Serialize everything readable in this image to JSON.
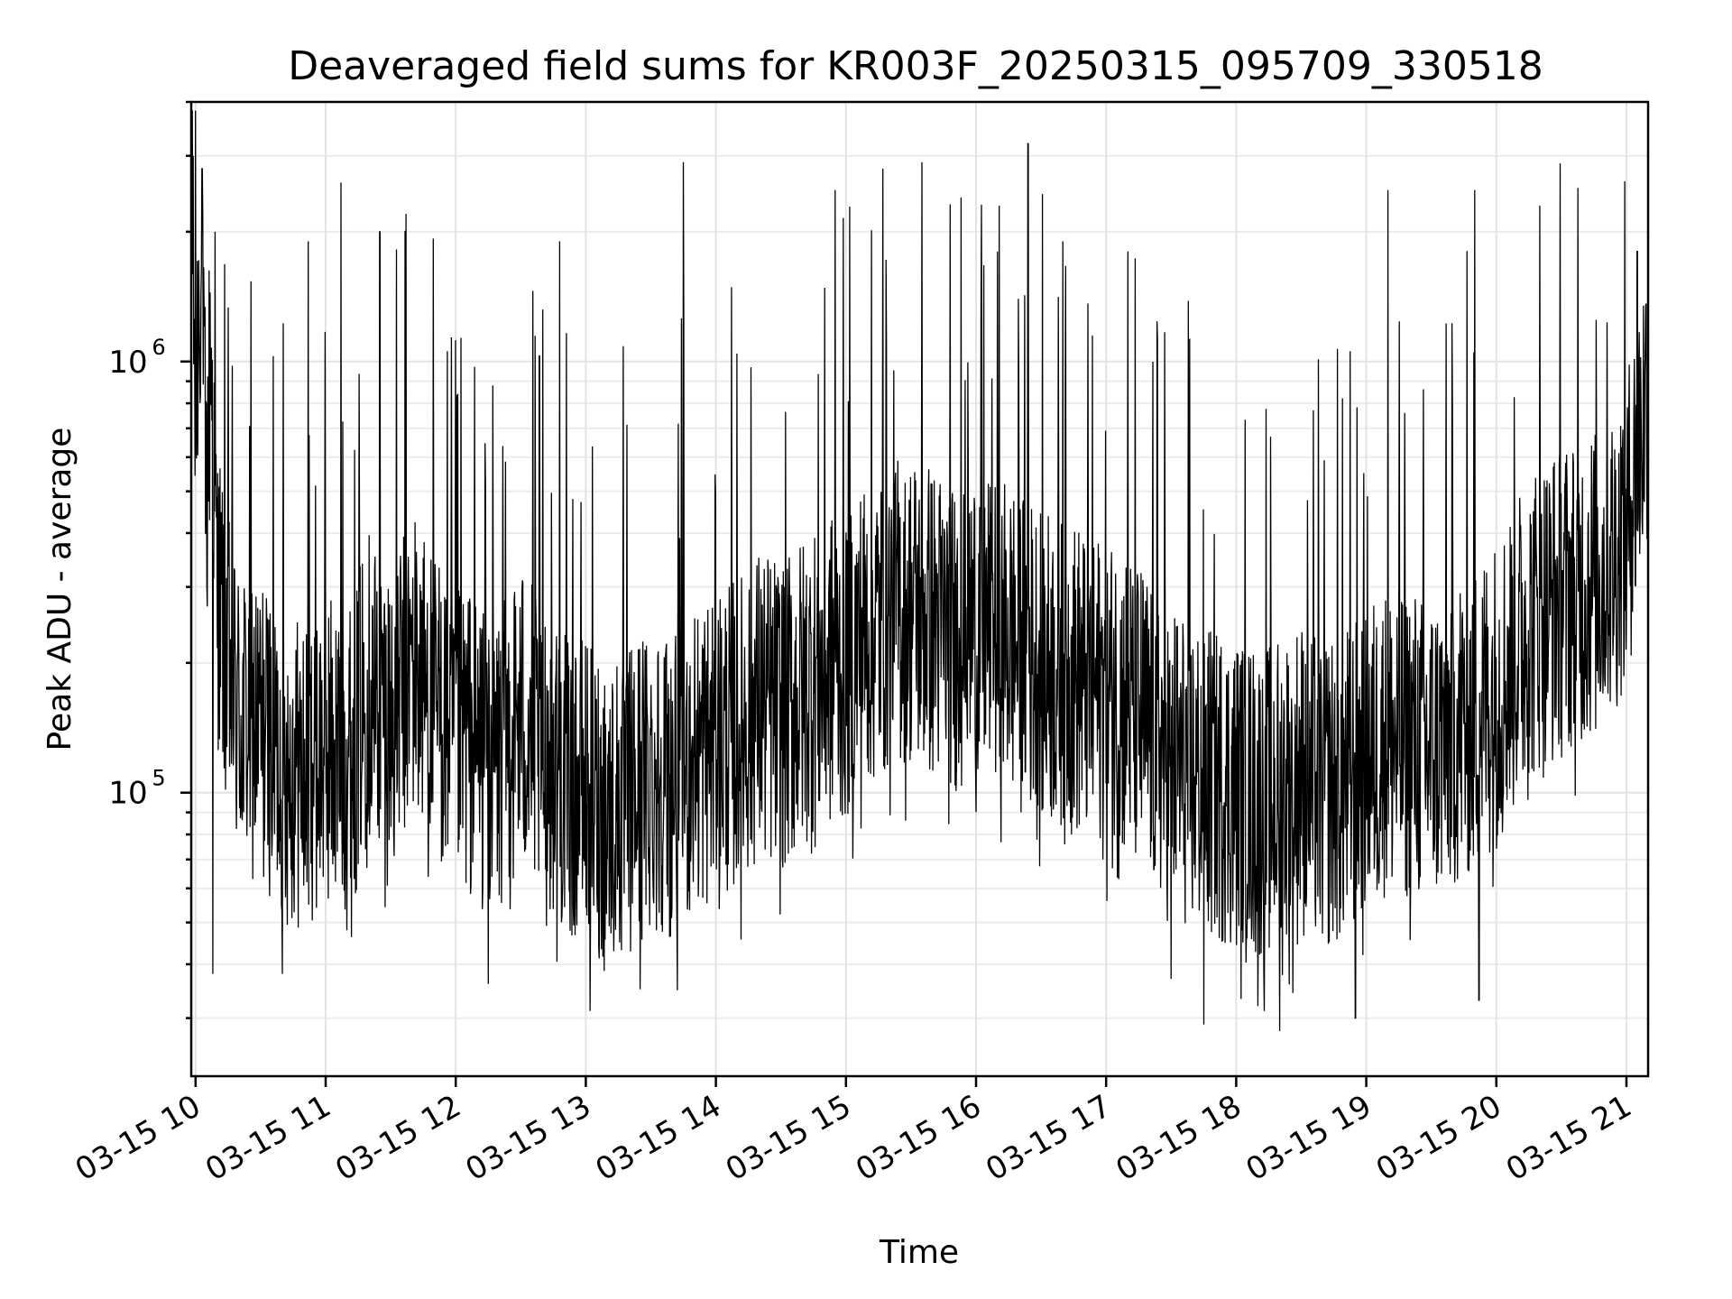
{
  "chart_data": {
    "type": "line",
    "title": "Deaveraged field sums for KR003F_20250315_095709_330518",
    "xlabel": "Time",
    "ylabel": "Peak ADU - average",
    "xscale": "time",
    "yscale": "log",
    "xlim": [
      "2025-03-15 09:58",
      "2025-03-15 21:10"
    ],
    "ylim": [
      22000,
      4000000
    ],
    "grid": true,
    "x_ticks": [
      "03-15 10",
      "03-15 11",
      "03-15 12",
      "03-15 13",
      "03-15 14",
      "03-15 15",
      "03-15 16",
      "03-15 17",
      "03-15 18",
      "03-15 19",
      "03-15 20",
      "03-15 21"
    ],
    "y_ticks": [
      {
        "base": "10",
        "exp": "5",
        "value": 100000
      },
      {
        "base": "10",
        "exp": "6",
        "value": 1000000
      }
    ],
    "color": "#000000",
    "series": [
      {
        "x": [
          "2025-03-15 09:58",
          "2025-03-15 10:00",
          "2025-03-15 10:02",
          "2025-03-15 10:05",
          "2025-03-15 10:07",
          "2025-03-15 10:10",
          "2025-03-15 10:15",
          "2025-03-15 10:20",
          "2025-03-15 10:30",
          "2025-03-15 10:40",
          "2025-03-15 10:50",
          "2025-03-15 11:00",
          "2025-03-15 11:10",
          "2025-03-15 11:20",
          "2025-03-15 11:30",
          "2025-03-15 11:40",
          "2025-03-15 11:50",
          "2025-03-15 12:00",
          "2025-03-15 12:10",
          "2025-03-15 12:20",
          "2025-03-15 12:30",
          "2025-03-15 12:40",
          "2025-03-15 12:50",
          "2025-03-15 13:00",
          "2025-03-15 13:10",
          "2025-03-15 13:20",
          "2025-03-15 13:30",
          "2025-03-15 13:40",
          "2025-03-15 13:50",
          "2025-03-15 14:00",
          "2025-03-15 14:10",
          "2025-03-15 14:20",
          "2025-03-15 14:30",
          "2025-03-15 14:40",
          "2025-03-15 14:50",
          "2025-03-15 15:00",
          "2025-03-15 15:10",
          "2025-03-15 15:20",
          "2025-03-15 15:30",
          "2025-03-15 15:40",
          "2025-03-15 15:50",
          "2025-03-15 16:00",
          "2025-03-15 16:10",
          "2025-03-15 16:20",
          "2025-03-15 16:30",
          "2025-03-15 16:40",
          "2025-03-15 16:50",
          "2025-03-15 17:00",
          "2025-03-15 17:10",
          "2025-03-15 17:20",
          "2025-03-15 17:30",
          "2025-03-15 17:40",
          "2025-03-15 17:50",
          "2025-03-15 18:00",
          "2025-03-15 18:10",
          "2025-03-15 18:20",
          "2025-03-15 18:30",
          "2025-03-15 18:40",
          "2025-03-15 18:50",
          "2025-03-15 19:00",
          "2025-03-15 19:10",
          "2025-03-15 19:20",
          "2025-03-15 19:30",
          "2025-03-15 19:40",
          "2025-03-15 19:50",
          "2025-03-15 20:00",
          "2025-03-15 20:10",
          "2025-03-15 20:20",
          "2025-03-15 20:30",
          "2025-03-15 20:40",
          "2025-03-15 20:50",
          "2025-03-15 21:00",
          "2025-03-15 21:05",
          "2025-03-15 21:10"
        ],
        "values": [
          2500000,
          700000,
          1800000,
          450000,
          1100000,
          300000,
          200000,
          150000,
          140000,
          120000,
          110000,
          130000,
          120000,
          180000,
          150000,
          200000,
          160000,
          140000,
          130000,
          120000,
          150000,
          130000,
          110000,
          100000,
          90000,
          95000,
          110000,
          105000,
          120000,
          130000,
          140000,
          160000,
          150000,
          170000,
          190000,
          200000,
          240000,
          260000,
          270000,
          250000,
          230000,
          250000,
          240000,
          220000,
          200000,
          190000,
          180000,
          170000,
          160000,
          140000,
          120000,
          110000,
          105000,
          100000,
          95000,
          100000,
          110000,
          100000,
          105000,
          120000,
          130000,
          130000,
          125000,
          140000,
          150000,
          170000,
          220000,
          260000,
          280000,
          300000,
          320000,
          400000,
          600000,
          900000
        ]
      }
    ],
    "spikes": [
      {
        "x": "2025-03-15 09:59",
        "value": 3000000
      },
      {
        "x": "2025-03-15 10:03",
        "value": 2800000
      },
      {
        "x": "2025-03-15 10:09",
        "value": 2000000
      },
      {
        "x": "2025-03-15 10:52",
        "value": 1900000
      },
      {
        "x": "2025-03-15 11:07",
        "value": 2600000
      },
      {
        "x": "2025-03-15 11:25",
        "value": 2000000
      },
      {
        "x": "2025-03-15 11:37",
        "value": 2200000
      },
      {
        "x": "2025-03-15 12:48",
        "value": 1900000
      },
      {
        "x": "2025-03-15 13:45",
        "value": 2900000
      },
      {
        "x": "2025-03-15 14:55",
        "value": 2500000
      },
      {
        "x": "2025-03-15 15:17",
        "value": 2800000
      },
      {
        "x": "2025-03-15 15:35",
        "value": 2900000
      },
      {
        "x": "2025-03-15 15:53",
        "value": 2400000
      },
      {
        "x": "2025-03-15 16:24",
        "value": 3200000
      },
      {
        "x": "2025-03-15 16:40",
        "value": 1900000
      },
      {
        "x": "2025-03-15 17:10",
        "value": 1800000
      },
      {
        "x": "2025-03-15 19:10",
        "value": 2500000
      },
      {
        "x": "2025-03-15 19:50",
        "value": 2500000
      },
      {
        "x": "2025-03-15 20:20",
        "value": 2300000
      },
      {
        "x": "2025-03-15 21:05",
        "value": 1800000
      }
    ],
    "dips": [
      {
        "x": "2025-03-15 10:08",
        "value": 38000
      },
      {
        "x": "2025-03-15 10:40",
        "value": 38000
      },
      {
        "x": "2025-03-15 12:15",
        "value": 36000
      },
      {
        "x": "2025-03-15 13:25",
        "value": 35000
      },
      {
        "x": "2025-03-15 17:30",
        "value": 37000
      },
      {
        "x": "2025-03-15 17:45",
        "value": 29000
      },
      {
        "x": "2025-03-15 18:10",
        "value": 32000
      },
      {
        "x": "2025-03-15 18:20",
        "value": 28000
      },
      {
        "x": "2025-03-15 18:55",
        "value": 30000
      },
      {
        "x": "2025-03-15 19:52",
        "value": 33000
      }
    ]
  }
}
